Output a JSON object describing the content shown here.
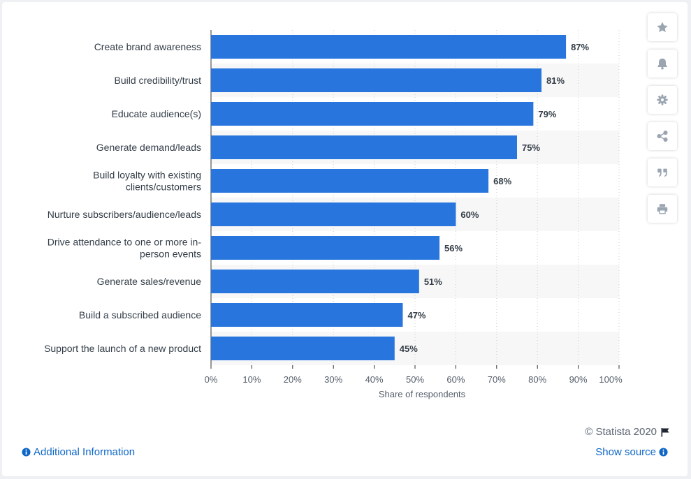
{
  "chart_data": {
    "type": "bar",
    "orientation": "horizontal",
    "categories": [
      [
        "Create brand awareness"
      ],
      [
        "Build credibility/trust"
      ],
      [
        "Educate audience(s)"
      ],
      [
        "Generate demand/leads"
      ],
      [
        "Build loyalty with existing",
        "clients/customers"
      ],
      [
        "Nurture subscribers/audience/leads"
      ],
      [
        "Drive attendance to one or more in-",
        "person events"
      ],
      [
        "Generate sales/revenue"
      ],
      [
        "Build a subscribed audience"
      ],
      [
        "Support the launch of a new product"
      ]
    ],
    "values": [
      87,
      81,
      79,
      75,
      68,
      60,
      56,
      51,
      47,
      45
    ],
    "value_labels": [
      "87%",
      "81%",
      "79%",
      "75%",
      "68%",
      "60%",
      "56%",
      "51%",
      "47%",
      "45%"
    ],
    "x_ticks": [
      0,
      10,
      20,
      30,
      40,
      50,
      60,
      70,
      80,
      90,
      100
    ],
    "x_tick_labels": [
      "0%",
      "10%",
      "20%",
      "30%",
      "40%",
      "50%",
      "60%",
      "70%",
      "80%",
      "90%",
      "100%"
    ],
    "xlim": [
      0,
      100
    ],
    "xlabel": "Share of respondents",
    "ylabel": "",
    "grid": true,
    "bar_color": "#2876dd"
  },
  "toolbar": {
    "icons": [
      "star-icon",
      "bell-icon",
      "gear-icon",
      "share-icon",
      "quote-icon",
      "print-icon"
    ]
  },
  "footer": {
    "copyright": "© Statista 2020",
    "additional_info": "Additional Information",
    "show_source": "Show source"
  },
  "colors": {
    "link": "#0e67c6",
    "bar": "#2876dd",
    "stripe": "#f7f7f7"
  }
}
